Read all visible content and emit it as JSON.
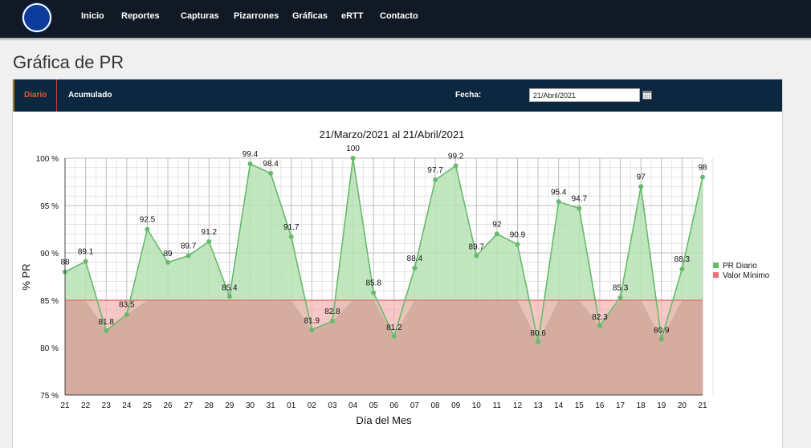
{
  "nav": {
    "items": [
      "Inicio",
      "Reportes",
      "Capturas",
      "Pizarrones",
      "Gráficas",
      "eRTT",
      "Contacto"
    ]
  },
  "page": {
    "title": "Gráfica de PR"
  },
  "tabs": [
    {
      "label": "Diario",
      "active": true
    },
    {
      "label": "Acumulado",
      "active": false
    }
  ],
  "filter": {
    "fecha_label": "Fecha:",
    "date_value": "21/Abril/2021",
    "calendar_icon": "calendar-icon"
  },
  "colors": {
    "nav_bg": "#111a24",
    "tab_bg": "#0b2840",
    "tab_active": "#e8552f",
    "series_line": "#66bb6a",
    "series_fill": "#b7e2b5",
    "threshold_line": "#e57373",
    "threshold_fill": "#f4b6b6",
    "below_fill": "#d4ada0"
  },
  "chart_data": {
    "type": "area",
    "title": "21/Marzo/2021 al 21/Abril/2021",
    "xlabel": "Día del Mes",
    "ylabel": "% PR",
    "ylim": [
      75,
      100
    ],
    "yticks": [
      75,
      80,
      85,
      90,
      95,
      100
    ],
    "ytick_labels": [
      "75 %",
      "80 %",
      "85 %",
      "90 %",
      "95 %",
      "100 %"
    ],
    "categories": [
      "21",
      "22",
      "23",
      "24",
      "25",
      "26",
      "27",
      "28",
      "29",
      "30",
      "31",
      "01",
      "02",
      "03",
      "04",
      "05",
      "06",
      "07",
      "08",
      "09",
      "10",
      "11",
      "12",
      "13",
      "14",
      "15",
      "16",
      "17",
      "18",
      "19",
      "20",
      "21"
    ],
    "series": [
      {
        "name": "PR Diario",
        "values": [
          88,
          89.1,
          81.8,
          83.5,
          92.5,
          89,
          89.7,
          91.2,
          85.4,
          99.4,
          98.4,
          91.7,
          81.9,
          82.8,
          100,
          85.8,
          81.2,
          88.4,
          97.7,
          99.2,
          89.7,
          92,
          90.9,
          80.6,
          95.4,
          94.7,
          82.3,
          85.3,
          97,
          80.9,
          88.3,
          98
        ]
      },
      {
        "name": "Valor Mínimo",
        "values": [
          85,
          85,
          85,
          85,
          85,
          85,
          85,
          85,
          85,
          85,
          85,
          85,
          85,
          85,
          85,
          85,
          85,
          85,
          85,
          85,
          85,
          85,
          85,
          85,
          85,
          85,
          85,
          85,
          85,
          85,
          85,
          85
        ]
      }
    ],
    "data_labels": [
      "88",
      "89.1",
      "81.8",
      "83.5",
      "92.5",
      "89",
      "89.7",
      "91.2",
      "85.4",
      "99.4",
      "98.4",
      "91.7",
      "81.9",
      "82.8",
      "100",
      "85.8",
      "81.2",
      "88.4",
      "97.7",
      "99.2",
      "89.7",
      "92",
      "90.9",
      "80.6",
      "95.4",
      "94.7",
      "82.3",
      "85.3",
      "97",
      "80.9",
      "88.3",
      "98"
    ],
    "grid": true,
    "legend": {
      "position": "right",
      "entries": [
        "PR Diario",
        "Valor Mínimo"
      ]
    }
  }
}
